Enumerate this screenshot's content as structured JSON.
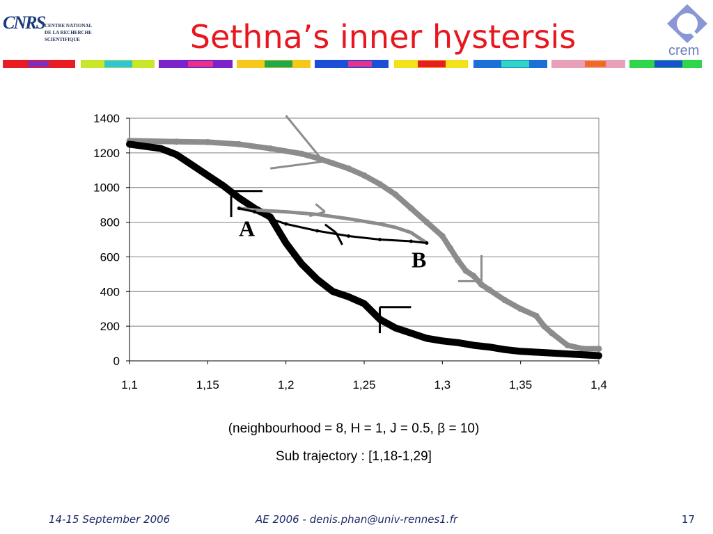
{
  "slide": {
    "title": "Sethna’s inner hystersis",
    "logo_left": {
      "mark": "CNRS",
      "lines": [
        "CENTRE NATIONAL",
        "DE LA RECHERCHE",
        "SCIENTIFIQUE"
      ]
    },
    "logo_right": {
      "label": "crem"
    },
    "caption_line1": "(neighbourhood = 8, H = 1, J = 0.5, β = 10)",
    "caption_line2": "Sub trajectory : [1,18-1,29]",
    "footer": {
      "date": "14-15 September 2006",
      "center": "AE 2006 - denis.phan@univ-rennes1.fr",
      "page": "17"
    },
    "colors": {
      "title": "#e8171f",
      "footer": "#1c2a6a",
      "black_curve": "#000000",
      "grey_curve": "#8c8c8c"
    }
  },
  "chart_data": {
    "type": "line",
    "x_tick_labels": [
      "1,1",
      "1,15",
      "1,2",
      "1,25",
      "1,3",
      "1,35",
      "1,4"
    ],
    "y_tick_labels": [
      "0",
      "200",
      "400",
      "600",
      "800",
      "1000",
      "1200",
      "1400"
    ],
    "xlim": [
      1.1,
      1.4
    ],
    "ylim": [
      0,
      1400
    ],
    "grid": "horizontal",
    "series": [
      {
        "color": "#8c8c8c",
        "x": [
          1.1,
          1.13,
          1.15,
          1.17,
          1.19,
          1.21,
          1.22,
          1.23,
          1.24,
          1.25,
          1.26,
          1.27,
          1.28,
          1.29,
          1.3,
          1.305,
          1.31,
          1.315,
          1.32,
          1.325,
          1.33,
          1.34,
          1.35,
          1.36,
          1.365,
          1.37,
          1.38,
          1.39,
          1.4
        ],
        "values": [
          1270,
          1265,
          1262,
          1250,
          1225,
          1195,
          1170,
          1140,
          1110,
          1070,
          1020,
          960,
          880,
          800,
          720,
          650,
          580,
          520,
          490,
          440,
          410,
          350,
          300,
          260,
          200,
          160,
          90,
          70,
          70
        ]
      },
      {
        "color": "#000000",
        "x": [
          1.1,
          1.12,
          1.13,
          1.14,
          1.15,
          1.16,
          1.17,
          1.18,
          1.19,
          1.2,
          1.21,
          1.22,
          1.23,
          1.24,
          1.25,
          1.26,
          1.27,
          1.28,
          1.29,
          1.3,
          1.31,
          1.32,
          1.33,
          1.34,
          1.35,
          1.36,
          1.37,
          1.38,
          1.39,
          1.4
        ],
        "values": [
          1250,
          1225,
          1190,
          1130,
          1070,
          1010,
          940,
          880,
          830,
          680,
          560,
          470,
          400,
          370,
          330,
          240,
          190,
          160,
          130,
          115,
          105,
          90,
          80,
          65,
          55,
          50,
          45,
          40,
          35,
          30
        ]
      },
      {
        "color": "#8c8c8c",
        "x": [
          1.17,
          1.18,
          1.2,
          1.22,
          1.24,
          1.26,
          1.27,
          1.28,
          1.285,
          1.29
        ],
        "values": [
          880,
          870,
          860,
          845,
          820,
          790,
          770,
          740,
          710,
          680
        ]
      },
      {
        "color": "#000000",
        "x": [
          1.17,
          1.18,
          1.19,
          1.2,
          1.22,
          1.24,
          1.26,
          1.28,
          1.29
        ],
        "values": [
          880,
          860,
          820,
          790,
          750,
          720,
          700,
          690,
          680
        ]
      }
    ],
    "annotations": [
      {
        "text": "A",
        "x": 1.175,
        "y": 720
      },
      {
        "text": "B",
        "x": 1.285,
        "y": 540
      }
    ]
  }
}
